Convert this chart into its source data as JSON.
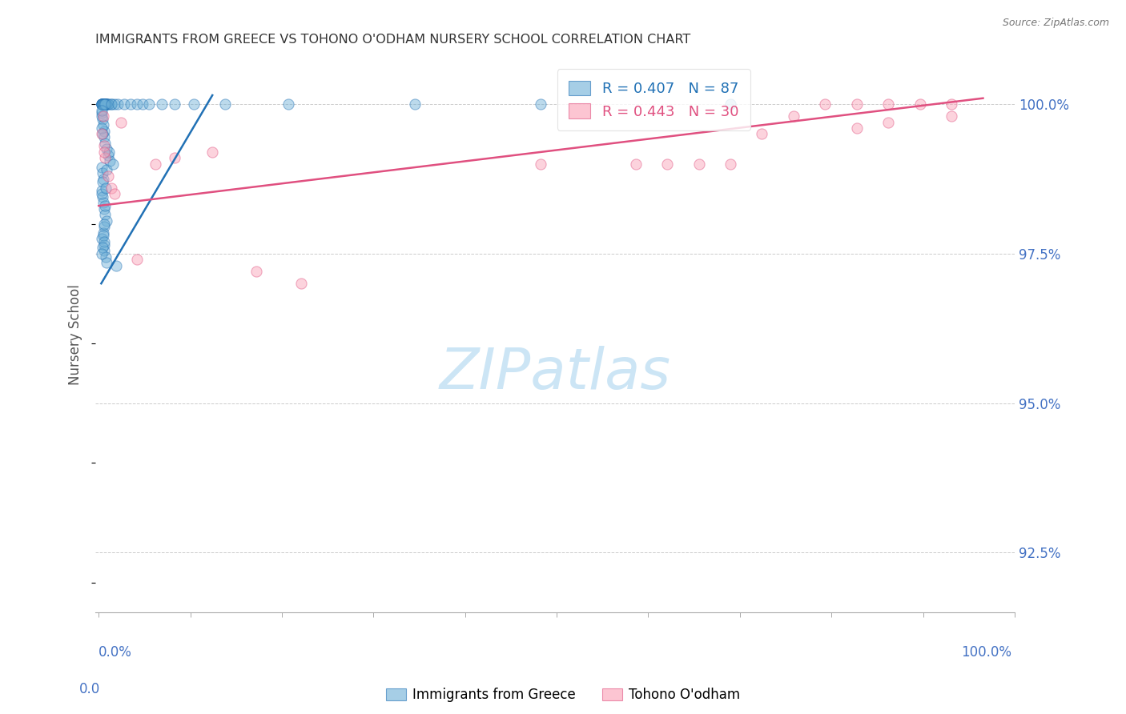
{
  "title": "IMMIGRANTS FROM GREECE VS TOHONO O'ODHAM NURSERY SCHOOL CORRELATION CHART",
  "source": "Source: ZipAtlas.com",
  "ylabel": "Nursery School",
  "yticks": [
    92.5,
    95.0,
    97.5,
    100.0
  ],
  "ytick_labels": [
    "92.5%",
    "95.0%",
    "97.5%",
    "100.0%"
  ],
  "blue_R": 0.407,
  "blue_N": 87,
  "pink_R": 0.443,
  "pink_N": 30,
  "legend_label_blue": "Immigrants from Greece",
  "legend_label_pink": "Tohono O'odham",
  "blue_color": "#6baed6",
  "pink_color": "#fa9fb5",
  "blue_line_color": "#2171b5",
  "pink_line_color": "#e05080",
  "title_color": "#333333",
  "axis_label_color": "#4472C4",
  "grid_color": "#cccccc",
  "watermark_text": "ZIPatlas",
  "watermark_color": "#cce5f5",
  "blue_scatter_x": [
    0.05,
    0.08,
    0.1,
    0.12,
    0.15,
    0.05,
    0.07,
    0.09,
    0.11,
    0.13,
    0.05,
    0.06,
    0.07,
    0.08,
    0.09,
    0.1,
    0.12,
    0.15,
    0.18,
    0.05,
    0.06,
    0.07,
    0.05,
    0.06,
    0.07,
    0.08,
    0.1,
    0.12,
    0.08,
    0.07,
    0.05,
    0.09,
    0.08,
    0.11,
    0.13,
    0.2,
    0.25,
    0.05,
    0.06,
    0.07,
    0.05,
    0.06,
    0.08,
    0.1,
    0.12,
    0.15,
    0.05,
    0.07,
    0.09,
    0.11,
    0.05,
    0.06,
    0.07,
    0.08,
    0.1,
    0.2,
    0.3,
    0.4,
    0.5,
    0.6,
    0.7,
    0.8,
    1.0,
    1.2,
    1.5,
    2.0,
    3.0,
    5.0,
    7.0,
    10.0,
    0.05,
    0.05,
    0.06,
    0.05,
    0.06,
    0.05,
    0.07,
    0.08,
    0.06,
    0.05,
    0.09,
    0.1,
    0.11,
    0.12,
    0.16,
    0.22,
    0.28
  ],
  "blue_scatter_y": [
    100.0,
    100.0,
    100.0,
    100.0,
    100.0,
    100.0,
    100.0,
    100.0,
    100.0,
    100.0,
    99.85,
    99.75,
    99.65,
    99.55,
    99.45,
    99.35,
    99.25,
    99.15,
    99.05,
    98.95,
    98.85,
    98.75,
    98.55,
    98.45,
    98.35,
    98.25,
    98.15,
    98.05,
    97.95,
    97.85,
    97.75,
    97.65,
    97.55,
    97.45,
    97.35,
    100.0,
    100.0,
    100.0,
    100.0,
    100.0,
    100.0,
    100.0,
    100.0,
    100.0,
    100.0,
    100.0,
    100.0,
    100.0,
    100.0,
    100.0,
    100.0,
    100.0,
    100.0,
    100.0,
    100.0,
    100.0,
    100.0,
    100.0,
    100.0,
    100.0,
    100.0,
    100.0,
    100.0,
    100.0,
    100.0,
    100.0,
    100.0,
    100.0,
    100.0,
    100.0,
    99.8,
    99.6,
    99.5,
    99.9,
    98.7,
    98.5,
    97.8,
    97.7,
    97.6,
    97.5,
    98.0,
    98.3,
    98.6,
    98.9,
    99.2,
    99.0,
    97.3
  ],
  "pink_scatter_x": [
    0.05,
    0.08,
    0.1,
    0.15,
    0.2,
    0.25,
    0.07,
    0.09,
    0.35,
    0.6,
    0.9,
    1.2,
    1.8,
    2.5,
    3.2,
    7.0,
    8.5,
    9.0,
    9.5,
    10.0,
    10.5,
    11.0,
    11.5,
    12.0,
    12.5,
    13.0,
    13.5,
    13.5,
    12.5,
    12.0
  ],
  "pink_scatter_y": [
    99.5,
    99.3,
    99.1,
    98.8,
    98.6,
    98.5,
    99.8,
    99.2,
    99.7,
    97.4,
    99.0,
    99.1,
    99.2,
    97.2,
    97.0,
    99.0,
    99.0,
    99.0,
    99.0,
    99.0,
    99.5,
    99.8,
    100.0,
    100.0,
    100.0,
    100.0,
    100.0,
    99.8,
    99.7,
    99.6
  ],
  "blue_trend_x": [
    0.04,
    1.8
  ],
  "blue_trend_y": [
    97.0,
    100.15
  ],
  "pink_trend_x": [
    0.0,
    14.0
  ],
  "pink_trend_y": [
    98.3,
    100.1
  ],
  "ylim_min": 91.5,
  "ylim_max": 100.8,
  "xlim_min": -0.05,
  "xlim_max": 14.5,
  "xtick_positions": [
    0.0,
    1.45,
    2.9,
    4.35,
    5.8,
    7.25,
    8.7,
    10.15,
    11.6,
    13.05,
    14.5
  ],
  "xlim_pct_min": 0.0,
  "xlim_pct_max": 100.0
}
